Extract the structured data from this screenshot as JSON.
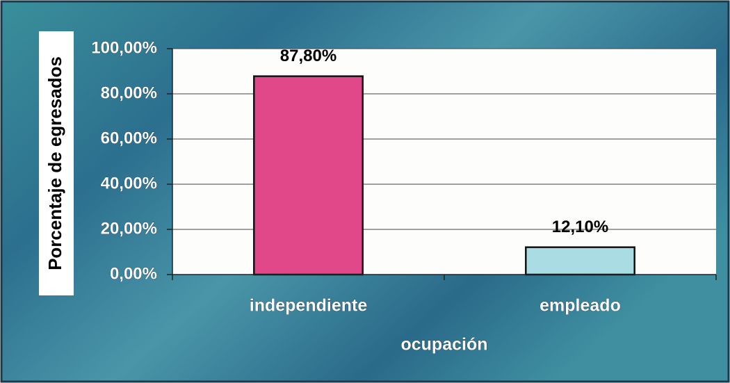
{
  "chart_data": {
    "type": "bar",
    "x_label": "ocupación",
    "y_label": "Porcentaje de egresados",
    "categories": [
      "independiente",
      "empleado"
    ],
    "values": [
      87.8,
      12.1
    ],
    "value_labels": [
      "87,80%",
      "12,10%"
    ],
    "colors": [
      "#e0488a",
      "#a9dde3"
    ],
    "ylim": [
      0,
      100
    ],
    "yticks": [
      {
        "value": 0,
        "label": "0,00%"
      },
      {
        "value": 20,
        "label": "20,00%"
      },
      {
        "value": 40,
        "label": "40,00%"
      },
      {
        "value": 60,
        "label": "60,00%"
      },
      {
        "value": 80,
        "label": "80,00%"
      },
      {
        "value": 100,
        "label": "100,00%"
      }
    ],
    "grid": true
  }
}
